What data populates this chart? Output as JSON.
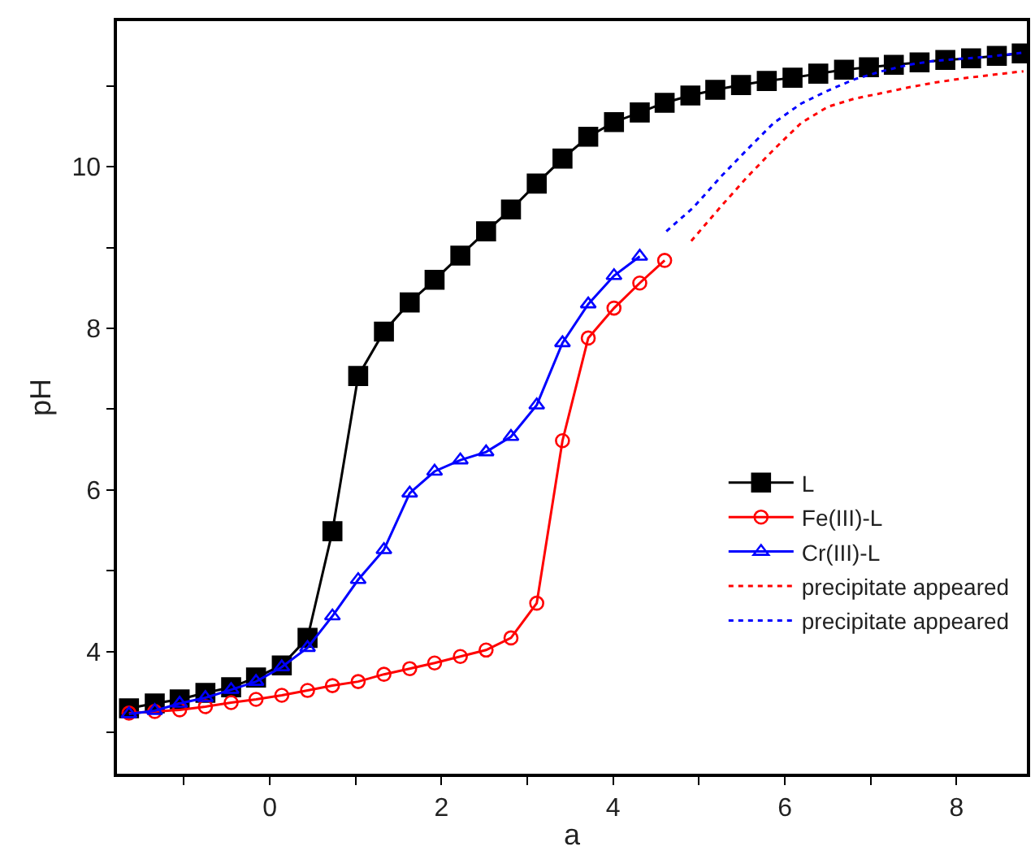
{
  "chart_data": {
    "type": "line",
    "xlabel": "a",
    "ylabel": "pH",
    "xlim": [
      -1.78,
      8.82
    ],
    "ylim": [
      2.49,
      11.8
    ],
    "xticks": [
      {
        "value": -1,
        "label": null
      },
      0,
      {
        "value": 1,
        "label": null
      },
      2,
      {
        "value": 3,
        "label": null
      },
      4,
      {
        "value": 5,
        "label": null
      },
      6,
      {
        "value": 7,
        "label": null
      },
      8
    ],
    "yticks": [
      {
        "value": 3,
        "label": null
      },
      4,
      {
        "value": 5,
        "label": null
      },
      6,
      {
        "value": 7,
        "label": null
      },
      8,
      {
        "value": 9,
        "label": null
      },
      10,
      {
        "value": 11,
        "label": null
      }
    ],
    "legend": "bottom right",
    "series": [
      {
        "name": "L",
        "color": "#000000",
        "marker": "square",
        "line_style": "solid",
        "x": [
          -1.64,
          -1.34,
          -1.05,
          -0.75,
          -0.45,
          -0.16,
          0.14,
          0.44,
          0.73,
          1.03,
          1.33,
          1.63,
          1.92,
          2.22,
          2.52,
          2.81,
          3.11,
          3.41,
          3.71,
          4.01,
          4.31,
          4.6,
          4.9,
          5.19,
          5.49,
          5.79,
          6.09,
          6.39,
          6.69,
          6.98,
          7.27,
          7.57,
          7.87,
          8.17,
          8.47,
          8.76
        ],
        "values": [
          3.3,
          3.36,
          3.41,
          3.49,
          3.56,
          3.68,
          3.83,
          4.17,
          5.49,
          7.41,
          7.96,
          8.32,
          8.6,
          8.9,
          9.2,
          9.47,
          9.79,
          10.1,
          10.37,
          10.55,
          10.67,
          10.79,
          10.88,
          10.95,
          11.01,
          11.06,
          11.1,
          11.15,
          11.2,
          11.23,
          11.26,
          11.29,
          11.32,
          11.34,
          11.37,
          11.4
        ]
      },
      {
        "name": "Fe(III)-L",
        "color": "#ff0000",
        "marker": "circle",
        "line_style": "solid",
        "x": [
          -1.64,
          -1.34,
          -1.05,
          -0.75,
          -0.45,
          -0.16,
          0.14,
          0.44,
          0.73,
          1.03,
          1.33,
          1.63,
          1.92,
          2.22,
          2.52,
          2.81,
          3.11,
          3.41,
          3.71,
          4.01,
          4.31,
          4.6
        ],
        "values": [
          3.24,
          3.26,
          3.28,
          3.32,
          3.37,
          3.41,
          3.46,
          3.52,
          3.58,
          3.63,
          3.72,
          3.79,
          3.86,
          3.94,
          4.02,
          4.17,
          4.6,
          6.61,
          7.88,
          8.25,
          8.56,
          8.84
        ]
      },
      {
        "name": "Cr(III)-L",
        "color": "#0000ff",
        "marker": "triangle",
        "line_style": "solid",
        "x": [
          -1.64,
          -1.34,
          -1.05,
          -0.75,
          -0.45,
          -0.16,
          0.14,
          0.44,
          0.73,
          1.03,
          1.33,
          1.63,
          1.92,
          2.22,
          2.52,
          2.81,
          3.11,
          3.41,
          3.71,
          4.01,
          4.31
        ],
        "values": [
          3.23,
          3.27,
          3.36,
          3.43,
          3.53,
          3.63,
          3.81,
          4.05,
          4.44,
          4.89,
          5.26,
          5.96,
          6.23,
          6.37,
          6.47,
          6.66,
          7.05,
          7.82,
          8.3,
          8.65,
          8.89
        ]
      },
      {
        "name": "precipitate appeared",
        "color": "#ff0000",
        "marker": "none",
        "line_style": "dotted",
        "x": [
          4.91,
          5.25,
          5.56,
          5.87,
          6.19,
          6.5,
          6.81,
          7.13,
          7.44,
          7.75,
          8.06,
          8.37,
          8.78
        ],
        "values": [
          9.08,
          9.5,
          9.87,
          10.21,
          10.54,
          10.74,
          10.84,
          10.91,
          10.98,
          11.04,
          11.09,
          11.13,
          11.18
        ]
      },
      {
        "name": "precipitate appeared",
        "color": "#0000ff",
        "marker": "none",
        "line_style": "dotted",
        "x": [
          4.62,
          4.94,
          5.25,
          5.56,
          5.87,
          6.19,
          6.5,
          6.81,
          7.13,
          7.44,
          7.75,
          8.37,
          8.78
        ],
        "values": [
          9.2,
          9.5,
          9.87,
          10.21,
          10.54,
          10.78,
          10.94,
          11.08,
          11.18,
          11.26,
          11.31,
          11.36,
          11.41
        ]
      }
    ]
  }
}
